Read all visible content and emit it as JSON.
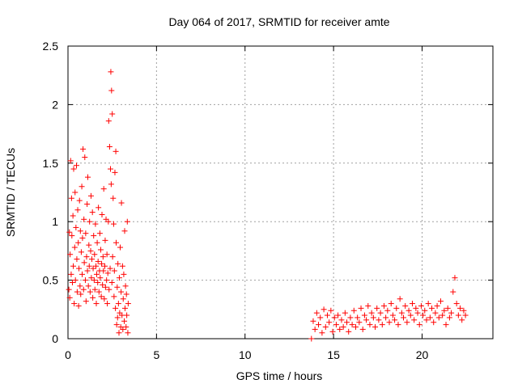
{
  "chart_data": {
    "type": "scatter",
    "title": "Day 064 of 2017, SRMTID for receiver amte",
    "xlabel": "GPS time / hours",
    "ylabel": "SRMTID / TECUs",
    "xlim": [
      0,
      24
    ],
    "ylim": [
      0,
      2.5
    ],
    "xticks": [
      0,
      5,
      10,
      15,
      20
    ],
    "yticks": [
      0,
      0.5,
      1,
      1.5,
      2,
      2.5
    ],
    "ytick_labels": [
      "0",
      "0.5",
      "1",
      "1.5",
      "2",
      "2.5"
    ],
    "grid": true,
    "marker": "+",
    "series": [
      {
        "name": "SRMTID",
        "color": "#ff0000",
        "points": [
          [
            0.05,
            0.42
          ],
          [
            0.08,
            0.91
          ],
          [
            0.1,
            0.35
          ],
          [
            0.12,
            0.72
          ],
          [
            0.15,
            1.52
          ],
          [
            0.18,
            0.55
          ],
          [
            0.2,
            1.2
          ],
          [
            0.22,
            0.88
          ],
          [
            0.25,
            0.48
          ],
          [
            0.28,
            1.05
          ],
          [
            0.3,
            0.62
          ],
          [
            0.32,
            1.45
          ],
          [
            0.35,
            0.3
          ],
          [
            0.38,
            0.78
          ],
          [
            0.4,
            1.25
          ],
          [
            0.42,
            0.5
          ],
          [
            0.45,
            0.95
          ],
          [
            0.48,
            1.48
          ],
          [
            0.5,
            0.68
          ],
          [
            0.52,
            0.4
          ],
          [
            0.55,
            1.1
          ],
          [
            0.58,
            0.82
          ],
          [
            0.6,
            0.28
          ],
          [
            0.62,
            0.6
          ],
          [
            0.65,
            1.18
          ],
          [
            0.68,
            0.45
          ],
          [
            0.7,
            0.92
          ],
          [
            0.72,
            0.38
          ],
          [
            0.75,
            0.74
          ],
          [
            0.78,
            1.3
          ],
          [
            0.8,
            0.55
          ],
          [
            0.82,
            0.86
          ],
          [
            0.85,
            1.62
          ],
          [
            0.88,
            0.42
          ],
          [
            0.9,
            1.02
          ],
          [
            0.92,
            0.65
          ],
          [
            0.95,
            1.55
          ],
          [
            0.98,
            0.5
          ],
          [
            1.0,
            0.9
          ],
          [
            1.02,
            0.32
          ],
          [
            1.05,
            0.7
          ],
          [
            1.08,
            1.15
          ],
          [
            1.1,
            0.58
          ],
          [
            1.12,
            1.38
          ],
          [
            1.15,
            0.45
          ],
          [
            1.18,
            0.8
          ],
          [
            1.2,
            0.62
          ],
          [
            1.22,
            1.0
          ],
          [
            1.25,
            0.4
          ],
          [
            1.28,
            0.75
          ],
          [
            1.3,
            1.22
          ],
          [
            1.32,
            0.52
          ],
          [
            1.35,
            0.68
          ],
          [
            1.38,
            1.08
          ],
          [
            1.4,
            0.35
          ],
          [
            1.42,
            0.6
          ],
          [
            1.45,
            0.88
          ],
          [
            1.48,
            0.5
          ],
          [
            1.5,
            0.72
          ],
          [
            1.52,
            0.42
          ],
          [
            1.55,
            0.98
          ],
          [
            1.58,
            0.62
          ],
          [
            1.6,
            0.3
          ],
          [
            1.62,
            0.55
          ],
          [
            1.65,
            0.82
          ],
          [
            1.68,
            0.48
          ],
          [
            1.7,
            0.66
          ],
          [
            1.72,
            1.12
          ],
          [
            1.75,
            0.4
          ],
          [
            1.78,
            0.58
          ],
          [
            1.8,
            0.9
          ],
          [
            1.82,
            0.52
          ],
          [
            1.85,
            0.76
          ],
          [
            1.88,
            0.36
          ],
          [
            1.9,
            0.64
          ],
          [
            1.92,
            1.06
          ],
          [
            1.95,
            0.46
          ],
          [
            1.98,
            0.7
          ],
          [
            2.0,
            0.58
          ],
          [
            2.02,
            1.28
          ],
          [
            2.05,
            0.34
          ],
          [
            2.08,
            0.62
          ],
          [
            2.1,
            0.84
          ],
          [
            2.12,
            0.44
          ],
          [
            2.15,
            1.02
          ],
          [
            2.18,
            0.5
          ],
          [
            2.2,
            0.72
          ],
          [
            2.22,
            0.3
          ],
          [
            2.25,
            0.56
          ],
          [
            2.28,
            1.0
          ],
          [
            2.3,
            1.86
          ],
          [
            2.32,
            0.42
          ],
          [
            2.35,
            1.64
          ],
          [
            2.38,
            0.6
          ],
          [
            2.4,
            1.45
          ],
          [
            2.42,
            2.28
          ],
          [
            2.44,
            1.32
          ],
          [
            2.46,
            2.12
          ],
          [
            2.48,
            0.48
          ],
          [
            2.5,
            1.92
          ],
          [
            2.52,
            0.7
          ],
          [
            2.55,
            1.2
          ],
          [
            2.58,
            0.98
          ],
          [
            2.6,
            0.36
          ],
          [
            2.62,
            0.58
          ],
          [
            2.65,
            1.42
          ],
          [
            2.68,
            0.26
          ],
          [
            2.7,
            1.6
          ],
          [
            2.72,
            0.82
          ],
          [
            2.75,
            0.12
          ],
          [
            2.78,
            0.44
          ],
          [
            2.8,
            0.18
          ],
          [
            2.82,
            0.64
          ],
          [
            2.85,
            0.3
          ],
          [
            2.88,
            0.05
          ],
          [
            2.9,
            0.52
          ],
          [
            2.92,
            0.22
          ],
          [
            2.95,
            0.78
          ],
          [
            2.98,
            0.1
          ],
          [
            3.0,
            0.4
          ],
          [
            3.02,
            1.16
          ],
          [
            3.05,
            0.2
          ],
          [
            3.08,
            0.62
          ],
          [
            3.1,
            0.08
          ],
          [
            3.12,
            0.34
          ],
          [
            3.15,
            0.55
          ],
          [
            3.18,
            0.15
          ],
          [
            3.2,
            0.92
          ],
          [
            3.22,
            0.26
          ],
          [
            3.25,
            0.45
          ],
          [
            3.28,
            0.1
          ],
          [
            3.3,
            0.38
          ],
          [
            3.32,
            0.2
          ],
          [
            3.35,
            1.0
          ],
          [
            3.38,
            0.05
          ],
          [
            3.4,
            0.3
          ],
          [
            13.75,
            0.0
          ],
          [
            13.85,
            0.15
          ],
          [
            13.95,
            0.08
          ],
          [
            14.05,
            0.22
          ],
          [
            14.15,
            0.12
          ],
          [
            14.25,
            0.18
          ],
          [
            14.35,
            0.05
          ],
          [
            14.45,
            0.25
          ],
          [
            14.55,
            0.1
          ],
          [
            14.65,
            0.2
          ],
          [
            14.75,
            0.14
          ],
          [
            14.85,
            0.24
          ],
          [
            14.95,
            0.06
          ],
          [
            15.05,
            0.18
          ],
          [
            15.15,
            0.12
          ],
          [
            15.25,
            0.2
          ],
          [
            15.35,
            0.08
          ],
          [
            15.45,
            0.16
          ],
          [
            15.55,
            0.1
          ],
          [
            15.65,
            0.22
          ],
          [
            15.75,
            0.14
          ],
          [
            15.85,
            0.06
          ],
          [
            15.95,
            0.18
          ],
          [
            16.05,
            0.12
          ],
          [
            16.15,
            0.24
          ],
          [
            16.25,
            0.1
          ],
          [
            16.35,
            0.18
          ],
          [
            16.45,
            0.14
          ],
          [
            16.55,
            0.26
          ],
          [
            16.65,
            0.08
          ],
          [
            16.75,
            0.2
          ],
          [
            16.85,
            0.16
          ],
          [
            16.95,
            0.28
          ],
          [
            17.05,
            0.12
          ],
          [
            17.15,
            0.22
          ],
          [
            17.25,
            0.18
          ],
          [
            17.35,
            0.1
          ],
          [
            17.45,
            0.26
          ],
          [
            17.55,
            0.16
          ],
          [
            17.65,
            0.22
          ],
          [
            17.75,
            0.12
          ],
          [
            17.85,
            0.28
          ],
          [
            17.95,
            0.18
          ],
          [
            18.05,
            0.24
          ],
          [
            18.15,
            0.14
          ],
          [
            18.25,
            0.3
          ],
          [
            18.35,
            0.2
          ],
          [
            18.45,
            0.16
          ],
          [
            18.55,
            0.26
          ],
          [
            18.65,
            0.12
          ],
          [
            18.75,
            0.34
          ],
          [
            18.85,
            0.22
          ],
          [
            18.95,
            0.18
          ],
          [
            19.05,
            0.28
          ],
          [
            19.15,
            0.14
          ],
          [
            19.25,
            0.24
          ],
          [
            19.35,
            0.2
          ],
          [
            19.45,
            0.3
          ],
          [
            19.55,
            0.16
          ],
          [
            19.65,
            0.26
          ],
          [
            19.75,
            0.22
          ],
          [
            19.85,
            0.12
          ],
          [
            19.95,
            0.28
          ],
          [
            20.05,
            0.2
          ],
          [
            20.15,
            0.24
          ],
          [
            20.25,
            0.16
          ],
          [
            20.35,
            0.3
          ],
          [
            20.45,
            0.18
          ],
          [
            20.55,
            0.26
          ],
          [
            20.65,
            0.14
          ],
          [
            20.75,
            0.22
          ],
          [
            20.85,
            0.28
          ],
          [
            20.95,
            0.18
          ],
          [
            21.05,
            0.32
          ],
          [
            21.15,
            0.2
          ],
          [
            21.25,
            0.24
          ],
          [
            21.35,
            0.12
          ],
          [
            21.45,
            0.26
          ],
          [
            21.55,
            0.18
          ],
          [
            21.65,
            0.22
          ],
          [
            21.75,
            0.4
          ],
          [
            21.85,
            0.52
          ],
          [
            21.95,
            0.3
          ],
          [
            22.05,
            0.2
          ],
          [
            22.15,
            0.26
          ],
          [
            22.25,
            0.16
          ],
          [
            22.35,
            0.24
          ],
          [
            22.45,
            0.2
          ]
        ]
      }
    ]
  }
}
